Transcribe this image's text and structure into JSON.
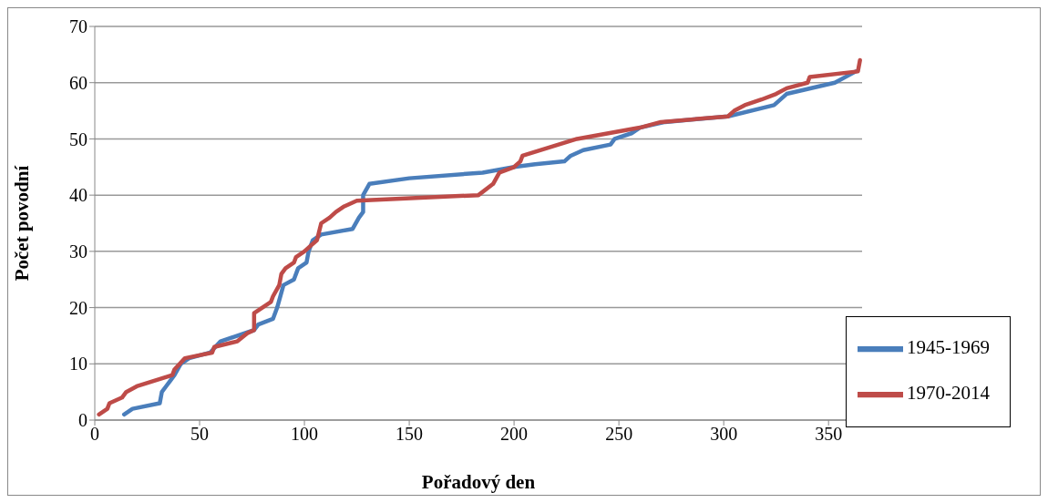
{
  "chart_data": {
    "type": "line",
    "xlabel": "Pořadový den",
    "ylabel": "Počet povodní",
    "xlim": [
      0,
      366
    ],
    "xticks": [
      0,
      50,
      100,
      150,
      200,
      250,
      300,
      350
    ],
    "ylim": [
      0,
      70
    ],
    "yticks": [
      0,
      10,
      20,
      30,
      40,
      50,
      60,
      70
    ],
    "grid": "y",
    "legend": "bottom right",
    "marker": "none",
    "line_style": "solid",
    "series": [
      {
        "name": "1945-1969",
        "color": "#4a7ebb",
        "x": [
          14,
          18,
          31,
          32,
          34,
          36,
          38,
          41,
          45,
          55,
          60,
          76,
          78,
          85,
          87,
          90,
          95,
          97,
          101,
          102,
          104,
          108,
          123,
          126,
          128,
          128,
          131,
          150,
          185,
          200,
          210,
          224,
          227,
          233,
          246,
          248,
          256,
          260,
          272,
          302,
          324,
          330,
          353,
          363
        ],
        "values": [
          1,
          2,
          3,
          5,
          6,
          7,
          8,
          10,
          11,
          12,
          14,
          16,
          17,
          18,
          20,
          24,
          25,
          27,
          28,
          30,
          32,
          33,
          34,
          36,
          37,
          40,
          42,
          43,
          44,
          45,
          45.5,
          46,
          47,
          48,
          49,
          50,
          51,
          52,
          53,
          54,
          56,
          58,
          60,
          62
        ]
      },
      {
        "name": "1970-2014",
        "color": "#be4b48",
        "x": [
          2,
          6,
          7,
          13,
          15,
          20,
          37,
          38,
          43,
          56,
          57,
          68,
          73,
          76,
          76,
          84,
          85,
          88,
          89,
          91,
          95,
          96,
          100,
          103,
          106,
          108,
          112,
          115,
          119,
          125,
          183,
          190,
          193,
          200,
          203,
          204,
          230,
          245,
          260,
          270,
          302,
          305,
          310,
          318,
          325,
          330,
          340,
          341,
          364,
          365
        ],
        "values": [
          1,
          2,
          3,
          4,
          5,
          6,
          8,
          9,
          11,
          12,
          13,
          14,
          15.5,
          16,
          19,
          21,
          22,
          24,
          26,
          27,
          28,
          29,
          30,
          31,
          32,
          35,
          36,
          37,
          38,
          39,
          40,
          42,
          44,
          45,
          46,
          47,
          50,
          51,
          52,
          53,
          54,
          55,
          56,
          57,
          58,
          59,
          60,
          61,
          62,
          64
        ]
      }
    ]
  }
}
